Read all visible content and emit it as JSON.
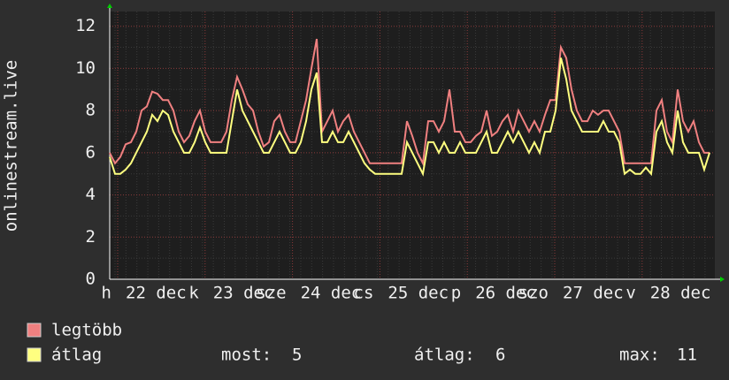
{
  "chart_data": {
    "type": "line",
    "ylabel": "onlinestream.live",
    "xlabels": {
      "weekdays": [
        "h",
        "k",
        "sze",
        "cs",
        "p",
        "szo",
        "v"
      ],
      "dates": [
        "22 dec",
        "23 dec",
        "24 dec",
        "25 dec",
        "26 dec",
        "27 dec",
        "28 dec"
      ]
    },
    "ylim": [
      0,
      12.7
    ],
    "yticks": [
      0,
      2,
      4,
      6,
      8,
      10,
      12
    ],
    "grid": true,
    "series": [
      {
        "name": "legtöbb",
        "color": "#f08080",
        "values": [
          6,
          5.5,
          5.8,
          6.4,
          6.5,
          7,
          8,
          8.2,
          8.9,
          8.8,
          8.5,
          8.5,
          8,
          7,
          6.5,
          6.8,
          7.5,
          8,
          7,
          6.5,
          6.5,
          6.5,
          7,
          8.5,
          9.6,
          9,
          8.3,
          8,
          7,
          6.3,
          6.5,
          7.5,
          7.8,
          7,
          6.5,
          6.5,
          7.5,
          8.5,
          10,
          11.4,
          7,
          7.5,
          8,
          7,
          7.5,
          7.8,
          7,
          6.5,
          6,
          5.5,
          5.5,
          5.5,
          5.5,
          5.5,
          5.5,
          5.5,
          7.5,
          6.8,
          6,
          5.5,
          7.5,
          7.5,
          7,
          7.5,
          9,
          7,
          7,
          6.5,
          6.5,
          6.8,
          7,
          8,
          6.8,
          7,
          7.5,
          7.8,
          7,
          8,
          7.5,
          7,
          7.5,
          7,
          7.8,
          8.5,
          8.5,
          11,
          10.5,
          9,
          8,
          7.5,
          7.5,
          8,
          7.8,
          8,
          8,
          7.5,
          7,
          5.5,
          5.5,
          5.5,
          5.5,
          5.5,
          5.5,
          8,
          8.5,
          7,
          6.5,
          9,
          7.5,
          7,
          7.5,
          6.5,
          6,
          6
        ]
      },
      {
        "name": "átlag",
        "color": "#ffff80",
        "values": [
          5.8,
          5,
          5,
          5.2,
          5.5,
          6,
          6.5,
          7,
          7.8,
          7.5,
          8,
          7.8,
          7,
          6.5,
          6,
          6,
          6.5,
          7.2,
          6.5,
          6,
          6,
          6,
          6,
          7.5,
          9,
          8,
          7.5,
          7,
          6.5,
          6,
          6,
          6.5,
          7,
          6.5,
          6,
          6,
          6.5,
          7.5,
          9,
          9.8,
          6.5,
          6.5,
          7,
          6.5,
          6.5,
          7,
          6.5,
          6,
          5.5,
          5.2,
          5,
          5,
          5,
          5,
          5,
          5,
          6.5,
          6,
          5.5,
          5,
          6.5,
          6.5,
          6,
          6.5,
          6,
          6,
          6.5,
          6,
          6,
          6,
          6.5,
          7,
          6,
          6,
          6.5,
          7,
          6.5,
          7,
          6.5,
          6,
          6.5,
          6,
          7,
          7,
          8,
          10.5,
          9.5,
          8,
          7.5,
          7,
          7,
          7,
          7,
          7.5,
          7,
          7,
          6.5,
          5,
          5.2,
          5,
          5,
          5.3,
          5,
          7,
          7.5,
          6.5,
          6,
          8,
          6.5,
          6,
          6,
          6,
          5.2,
          6
        ]
      }
    ],
    "stats": [
      {
        "label": "most:",
        "value": 5
      },
      {
        "label": "átlag:",
        "value": 6
      },
      {
        "label": "max:",
        "value": 11
      }
    ]
  }
}
